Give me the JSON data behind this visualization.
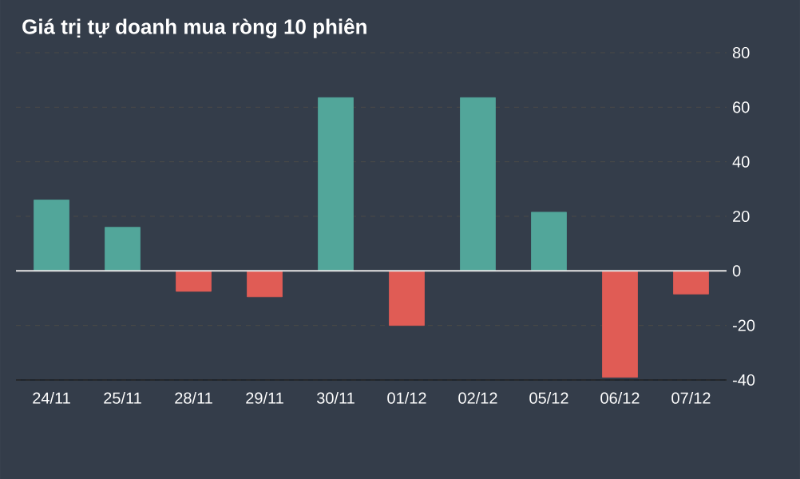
{
  "chart_data": {
    "type": "bar",
    "title": "Giá trị tự doanh mua ròng 10 phiên",
    "categories": [
      "24/11",
      "25/11",
      "28/11",
      "29/11",
      "30/11",
      "01/12",
      "02/12",
      "05/12",
      "06/12",
      "07/12"
    ],
    "values": [
      26,
      16,
      -7.5,
      -9.5,
      63.5,
      -20,
      63.5,
      21.5,
      -39,
      -8.5
    ],
    "colors": [
      "#52a69a",
      "#52a69a",
      "#e05c55",
      "#e05c55",
      "#52a69a",
      "#e05c55",
      "#52a69a",
      "#52a69a",
      "#e05c55",
      "#e05c55"
    ],
    "ylim": [
      -40,
      80
    ],
    "yticks": [
      -40,
      -20,
      0,
      20,
      40,
      60,
      80
    ],
    "grid": "y"
  }
}
